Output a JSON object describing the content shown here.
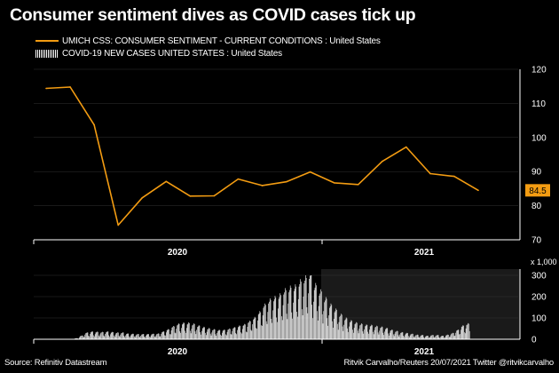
{
  "header": {
    "title": "Consumer sentiment dives as COVID cases tick up"
  },
  "colors": {
    "sentiment": "#F39C12",
    "cases": "#FFFFFF",
    "background": "#000000",
    "axis": "#FFFFFF",
    "grid": "#333333"
  },
  "legend": {
    "sentiment_label": "UMICH CSS: CONSUMER SENTIMENT - CURRENT CONDITIONS : United States",
    "cases_label": "COVID-19 NEW CASES UNITED STATES : United States"
  },
  "footer": {
    "source": "Source: Refinitiv Datastream",
    "credit": "Ritvik Carvalho/Reuters 20/07/2021 Twitter @ritvikcarvalho"
  },
  "chart_data": [
    {
      "type": "line",
      "series_name": "UMICH CSS: CONSUMER SENTIMENT - CURRENT CONDITIONS : United States",
      "x": [
        "2020-01",
        "2020-02",
        "2020-03",
        "2020-04",
        "2020-05",
        "2020-06",
        "2020-07",
        "2020-08",
        "2020-09",
        "2020-10",
        "2020-11",
        "2020-12",
        "2021-01",
        "2021-02",
        "2021-03",
        "2021-04",
        "2021-05",
        "2021-06",
        "2021-07"
      ],
      "values": [
        114.4,
        114.8,
        103.7,
        74.3,
        82.3,
        87.1,
        82.8,
        82.9,
        87.8,
        85.9,
        87.0,
        89.9,
        86.7,
        86.2,
        93.0,
        97.2,
        89.4,
        88.6,
        84.5
      ],
      "last_value_label": "84.5",
      "y_ticks": [
        70,
        80,
        90,
        100,
        110,
        120
      ],
      "ylim": [
        70,
        120
      ],
      "x_tick_labels": [
        "2020",
        "2021"
      ]
    },
    {
      "type": "bar",
      "series_name": "COVID-19 NEW CASES UNITED STATES : United States",
      "units_label": "x 1,000",
      "y_ticks": [
        0,
        100,
        200,
        300
      ],
      "ylim": [
        0,
        300
      ],
      "x_tick_labels": [
        "2020",
        "2021"
      ],
      "x_start": "2020-03",
      "frequency": "daily",
      "weekly_values": [
        0,
        0,
        4,
        15,
        27,
        31,
        30,
        29,
        31,
        29,
        27,
        27,
        23,
        22,
        21,
        21,
        21,
        22,
        23,
        31,
        40,
        52,
        62,
        66,
        66,
        62,
        55,
        49,
        44,
        40,
        37,
        38,
        42,
        48,
        54,
        60,
        73,
        88,
        110,
        140,
        160,
        170,
        180,
        200,
        210,
        215,
        235,
        250,
        270,
        220,
        195,
        165,
        140,
        120,
        100,
        85,
        75,
        67,
        62,
        58,
        57,
        53,
        50,
        45,
        38,
        33,
        28,
        25,
        22,
        18,
        17,
        14,
        17,
        17,
        14,
        18,
        25,
        38,
        55,
        63
      ]
    }
  ]
}
